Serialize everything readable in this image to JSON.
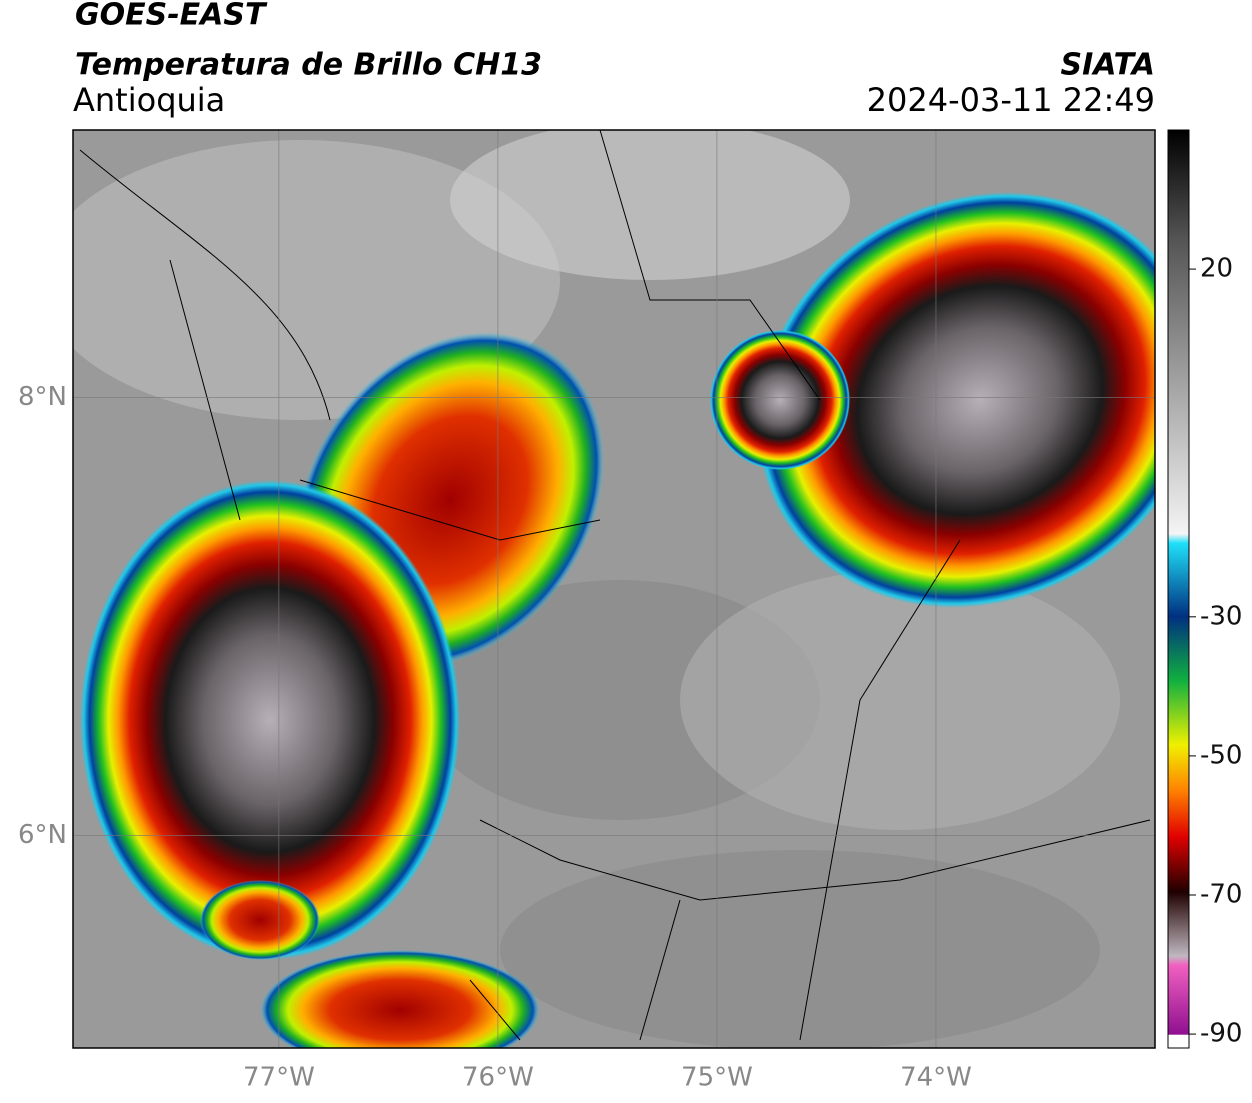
{
  "header": {
    "satellite": "GOES-EAST",
    "product": "Temperatura de Brillo CH13",
    "region": "Antioquia",
    "source": "SIATA",
    "datetime": "2024-03-11 22:49"
  },
  "map": {
    "xlim": [
      -77.94,
      -73.0
    ],
    "ylim": [
      5.03,
      9.22
    ],
    "xticks": [
      {
        "value": -77,
        "label": "77°W"
      },
      {
        "value": -76,
        "label": "76°W"
      },
      {
        "value": -75,
        "label": "75°W"
      },
      {
        "value": -74,
        "label": "74°W"
      }
    ],
    "yticks": [
      {
        "value": 8,
        "label": "8°N"
      },
      {
        "value": 6,
        "label": "6°N"
      }
    ],
    "grid": true
  },
  "colorbar": {
    "lim": [
      -92,
      40
    ],
    "ticks": [
      20,
      -30,
      -50,
      -70,
      -90
    ]
  }
}
